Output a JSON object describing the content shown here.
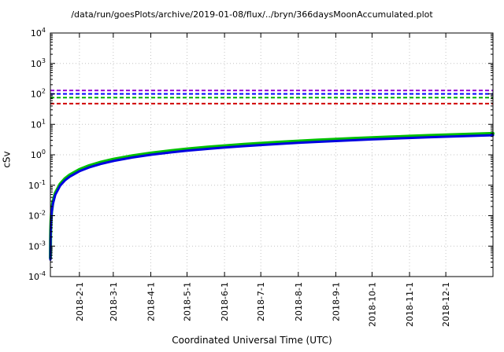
{
  "chart_data": {
    "type": "line",
    "title": "/data/run/goesPlots/archive/2019-01-08/flux/../bryn/366daysMoonAccumulated.plot",
    "xlabel": "Coordinated Universal Time (UTC)",
    "ylabel": "cSv",
    "grid": true,
    "legend": "none",
    "x_axis": {
      "max_day": 366,
      "ticks": [
        {
          "day": 24,
          "label": "2018-2-1"
        },
        {
          "day": 52,
          "label": "2018-3-1"
        },
        {
          "day": 83,
          "label": "2018-4-1"
        },
        {
          "day": 113,
          "label": "2018-5-1"
        },
        {
          "day": 144,
          "label": "2018-6-1"
        },
        {
          "day": 174,
          "label": "2018-7-1"
        },
        {
          "day": 205,
          "label": "2018-8-1"
        },
        {
          "day": 236,
          "label": "2018-9-1"
        },
        {
          "day": 266,
          "label": "2018-10-1"
        },
        {
          "day": 297,
          "label": "2018-11-1"
        },
        {
          "day": 327,
          "label": "2018-12-1"
        }
      ]
    },
    "y_axis": {
      "scale": "log",
      "min": 0.0001,
      "max": 10000,
      "tick_exponents": [
        -4,
        -3,
        -2,
        -1,
        0,
        1,
        2,
        3,
        4
      ]
    },
    "thresholds": [
      {
        "name": "limit-line-purple",
        "value": 130,
        "color": "#9400d3"
      },
      {
        "name": "limit-line-blue",
        "value": 100,
        "color": "#0000ff"
      },
      {
        "name": "limit-line-green",
        "value": 75,
        "color": "#00b000"
      },
      {
        "name": "limit-line-red",
        "value": 48,
        "color": "#d00000"
      }
    ],
    "series": [
      {
        "name": "accumulated-dose-upper",
        "color": "#00c000",
        "width": 4,
        "points": [
          [
            0.03,
            0.00041
          ],
          [
            0.06,
            0.00082
          ],
          [
            0.125,
            0.00171
          ],
          [
            0.25,
            0.00342
          ],
          [
            0.5,
            0.00684
          ],
          [
            1,
            0.0137
          ],
          [
            2,
            0.0274
          ],
          [
            4,
            0.0547
          ],
          [
            8,
            0.109
          ],
          [
            12,
            0.164
          ],
          [
            16,
            0.219
          ],
          [
            24,
            0.329
          ],
          [
            32,
            0.439
          ],
          [
            42,
            0.576
          ],
          [
            52,
            0.713
          ],
          [
            68,
            0.933
          ],
          [
            83,
            1.138
          ],
          [
            100,
            1.37
          ],
          [
            113,
            1.549
          ],
          [
            130,
            1.782
          ],
          [
            144,
            1.973
          ],
          [
            160,
            2.193
          ],
          [
            174,
            2.385
          ],
          [
            190,
            2.604
          ],
          [
            205,
            2.81
          ],
          [
            220,
            3.015
          ],
          [
            236,
            3.234
          ],
          [
            250,
            3.427
          ],
          [
            266,
            3.646
          ],
          [
            280,
            3.837
          ],
          [
            297,
            4.071
          ],
          [
            312,
            4.276
          ],
          [
            327,
            4.481
          ],
          [
            345,
            4.729
          ],
          [
            366,
            5.016
          ]
        ]
      },
      {
        "name": "accumulated-dose-lower",
        "color": "#0000e0",
        "width": 3,
        "points": [
          [
            0.03,
            0.00036
          ],
          [
            0.06,
            0.00072
          ],
          [
            0.125,
            0.0015
          ],
          [
            0.25,
            0.003
          ],
          [
            0.5,
            0.006
          ],
          [
            1,
            0.012
          ],
          [
            2,
            0.024
          ],
          [
            4,
            0.048
          ],
          [
            8,
            0.096
          ],
          [
            12,
            0.144
          ],
          [
            16,
            0.192
          ],
          [
            24,
            0.289
          ],
          [
            32,
            0.385
          ],
          [
            42,
            0.505
          ],
          [
            52,
            0.625
          ],
          [
            68,
            0.818
          ],
          [
            83,
            0.998
          ],
          [
            100,
            1.202
          ],
          [
            113,
            1.359
          ],
          [
            130,
            1.563
          ],
          [
            144,
            1.731
          ],
          [
            160,
            1.924
          ],
          [
            174,
            2.092
          ],
          [
            190,
            2.284
          ],
          [
            205,
            2.465
          ],
          [
            220,
            2.645
          ],
          [
            236,
            2.837
          ],
          [
            250,
            3.006
          ],
          [
            266,
            3.198
          ],
          [
            280,
            3.366
          ],
          [
            297,
            3.571
          ],
          [
            312,
            3.751
          ],
          [
            327,
            3.931
          ],
          [
            345,
            4.148
          ],
          [
            366,
            4.4
          ]
        ]
      }
    ]
  }
}
